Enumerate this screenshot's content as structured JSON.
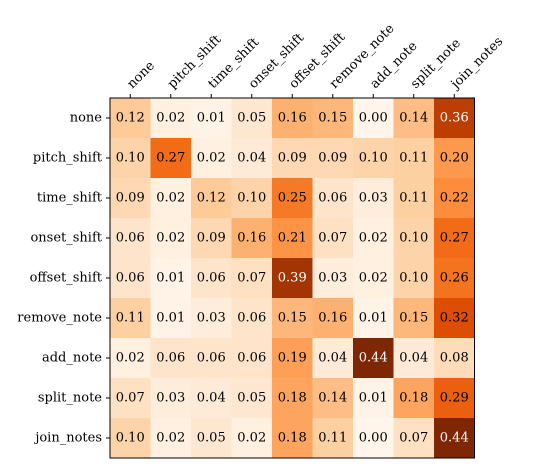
{
  "chart_data": {
    "type": "heatmap",
    "title": "",
    "xlabel": "",
    "ylabel": "",
    "x_categories": [
      "none",
      "pitch_shift",
      "time_shift",
      "onset_shift",
      "offset_shift",
      "remove_note",
      "add_note",
      "split_note",
      "join_notes"
    ],
    "y_categories": [
      "none",
      "pitch_shift",
      "time_shift",
      "onset_shift",
      "offset_shift",
      "remove_note",
      "add_note",
      "split_note",
      "join_notes"
    ],
    "x_tick_position": "top",
    "x_tick_rotation": 45,
    "colormap": "Oranges",
    "value_range": [
      0,
      0.44
    ],
    "values": [
      [
        0.12,
        0.02,
        0.01,
        0.05,
        0.16,
        0.15,
        0.0,
        0.14,
        0.36
      ],
      [
        0.1,
        0.27,
        0.02,
        0.04,
        0.09,
        0.09,
        0.1,
        0.11,
        0.2
      ],
      [
        0.09,
        0.02,
        0.12,
        0.1,
        0.25,
        0.06,
        0.03,
        0.11,
        0.22
      ],
      [
        0.06,
        0.02,
        0.09,
        0.16,
        0.21,
        0.07,
        0.02,
        0.1,
        0.27
      ],
      [
        0.06,
        0.01,
        0.06,
        0.07,
        0.39,
        0.03,
        0.02,
        0.1,
        0.26
      ],
      [
        0.11,
        0.01,
        0.03,
        0.06,
        0.15,
        0.16,
        0.01,
        0.15,
        0.32
      ],
      [
        0.02,
        0.06,
        0.06,
        0.06,
        0.19,
        0.04,
        0.44,
        0.04,
        0.08
      ],
      [
        0.07,
        0.03,
        0.04,
        0.05,
        0.18,
        0.14,
        0.01,
        0.18,
        0.29
      ],
      [
        0.1,
        0.02,
        0.05,
        0.02,
        0.18,
        0.11,
        0.0,
        0.07,
        0.44
      ]
    ],
    "number_format": "0.00",
    "grid": false,
    "legend": "none"
  }
}
